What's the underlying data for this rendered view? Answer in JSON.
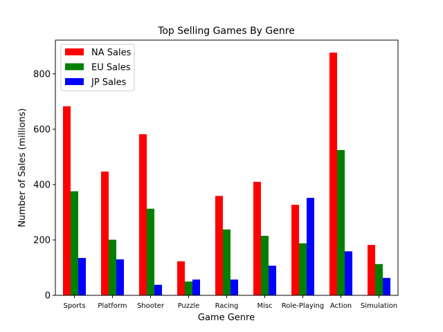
{
  "chart_data": {
    "type": "bar",
    "title": "Top Selling Games By Genre",
    "xlabel": "Game Genre",
    "ylabel": "Number of Sales (millions)",
    "ylim": [
      0,
      922
    ],
    "yticks": [
      0,
      200,
      400,
      600,
      800
    ],
    "categories": [
      "Sports",
      "Platform",
      "Shooter",
      "Puzzle",
      "Racing",
      "Misc",
      "Role-Playing",
      "Action",
      "Simulation"
    ],
    "series": [
      {
        "name": "NA Sales",
        "color": "#ff0000",
        "values": [
          683,
          447,
          582,
          123,
          359,
          410,
          327,
          877,
          182
        ]
      },
      {
        "name": "EU Sales",
        "color": "#008000",
        "values": [
          376,
          201,
          313,
          50,
          238,
          215,
          188,
          525,
          113
        ]
      },
      {
        "name": "JP Sales",
        "color": "#0000ff",
        "values": [
          135,
          130,
          38,
          57,
          57,
          107,
          352,
          159,
          63
        ]
      }
    ],
    "legend_position": "top-left",
    "grid": false
  }
}
